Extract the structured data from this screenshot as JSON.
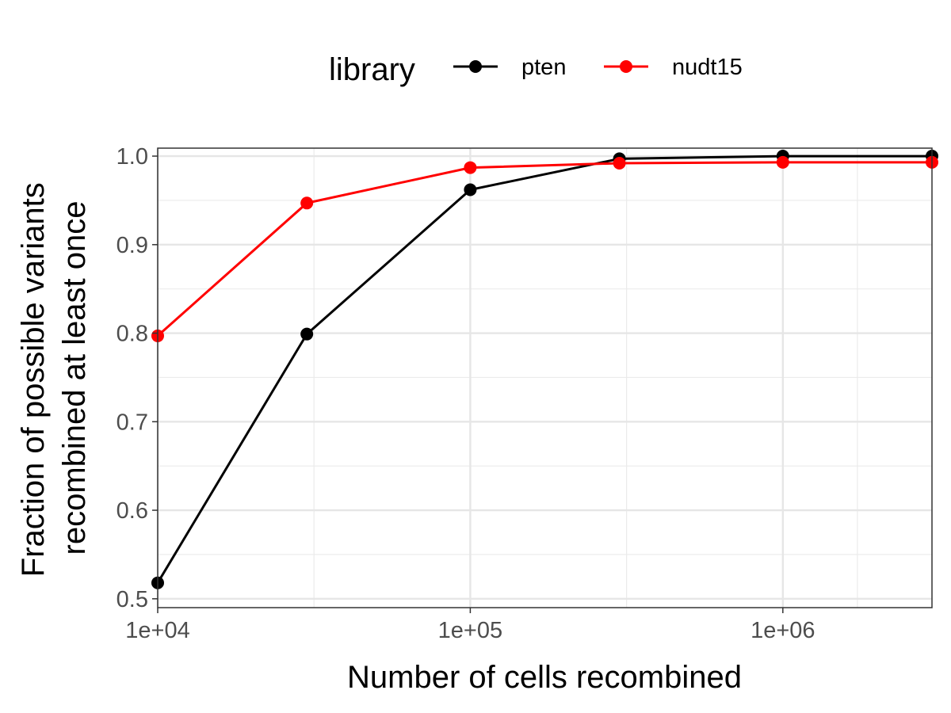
{
  "chart_data": {
    "type": "line",
    "x_scale": "log10",
    "xlabel": "Number of cells recombined",
    "ylabel_lines": [
      "Fraction of possible variants",
      "recombined at least once"
    ],
    "xlim": [
      10000,
      3000000
    ],
    "ylim": [
      0.5,
      1.0
    ],
    "x_ticks": [
      {
        "value": 10000,
        "label": "1e+04"
      },
      {
        "value": 100000,
        "label": "1e+05"
      },
      {
        "value": 1000000,
        "label": "1e+06"
      }
    ],
    "y_ticks": [
      {
        "value": 0.5,
        "label": "0.5"
      },
      {
        "value": 0.6,
        "label": "0.6"
      },
      {
        "value": 0.7,
        "label": "0.7"
      },
      {
        "value": 0.8,
        "label": "0.8"
      },
      {
        "value": 0.9,
        "label": "0.9"
      },
      {
        "value": 1.0,
        "label": "1.0"
      }
    ],
    "grid": true,
    "legend": {
      "title": "library",
      "position": "top"
    },
    "series": [
      {
        "name": "pten",
        "color": "#000000",
        "x": [
          10000,
          30000,
          100000,
          300000,
          1000000,
          3000000
        ],
        "y": [
          0.518,
          0.799,
          0.962,
          0.997,
          1.0,
          1.0
        ]
      },
      {
        "name": "nudt15",
        "color": "#ff0000",
        "x": [
          10000,
          30000,
          100000,
          300000,
          1000000,
          3000000
        ],
        "y": [
          0.797,
          0.947,
          0.987,
          0.992,
          0.993,
          0.993
        ]
      }
    ]
  }
}
